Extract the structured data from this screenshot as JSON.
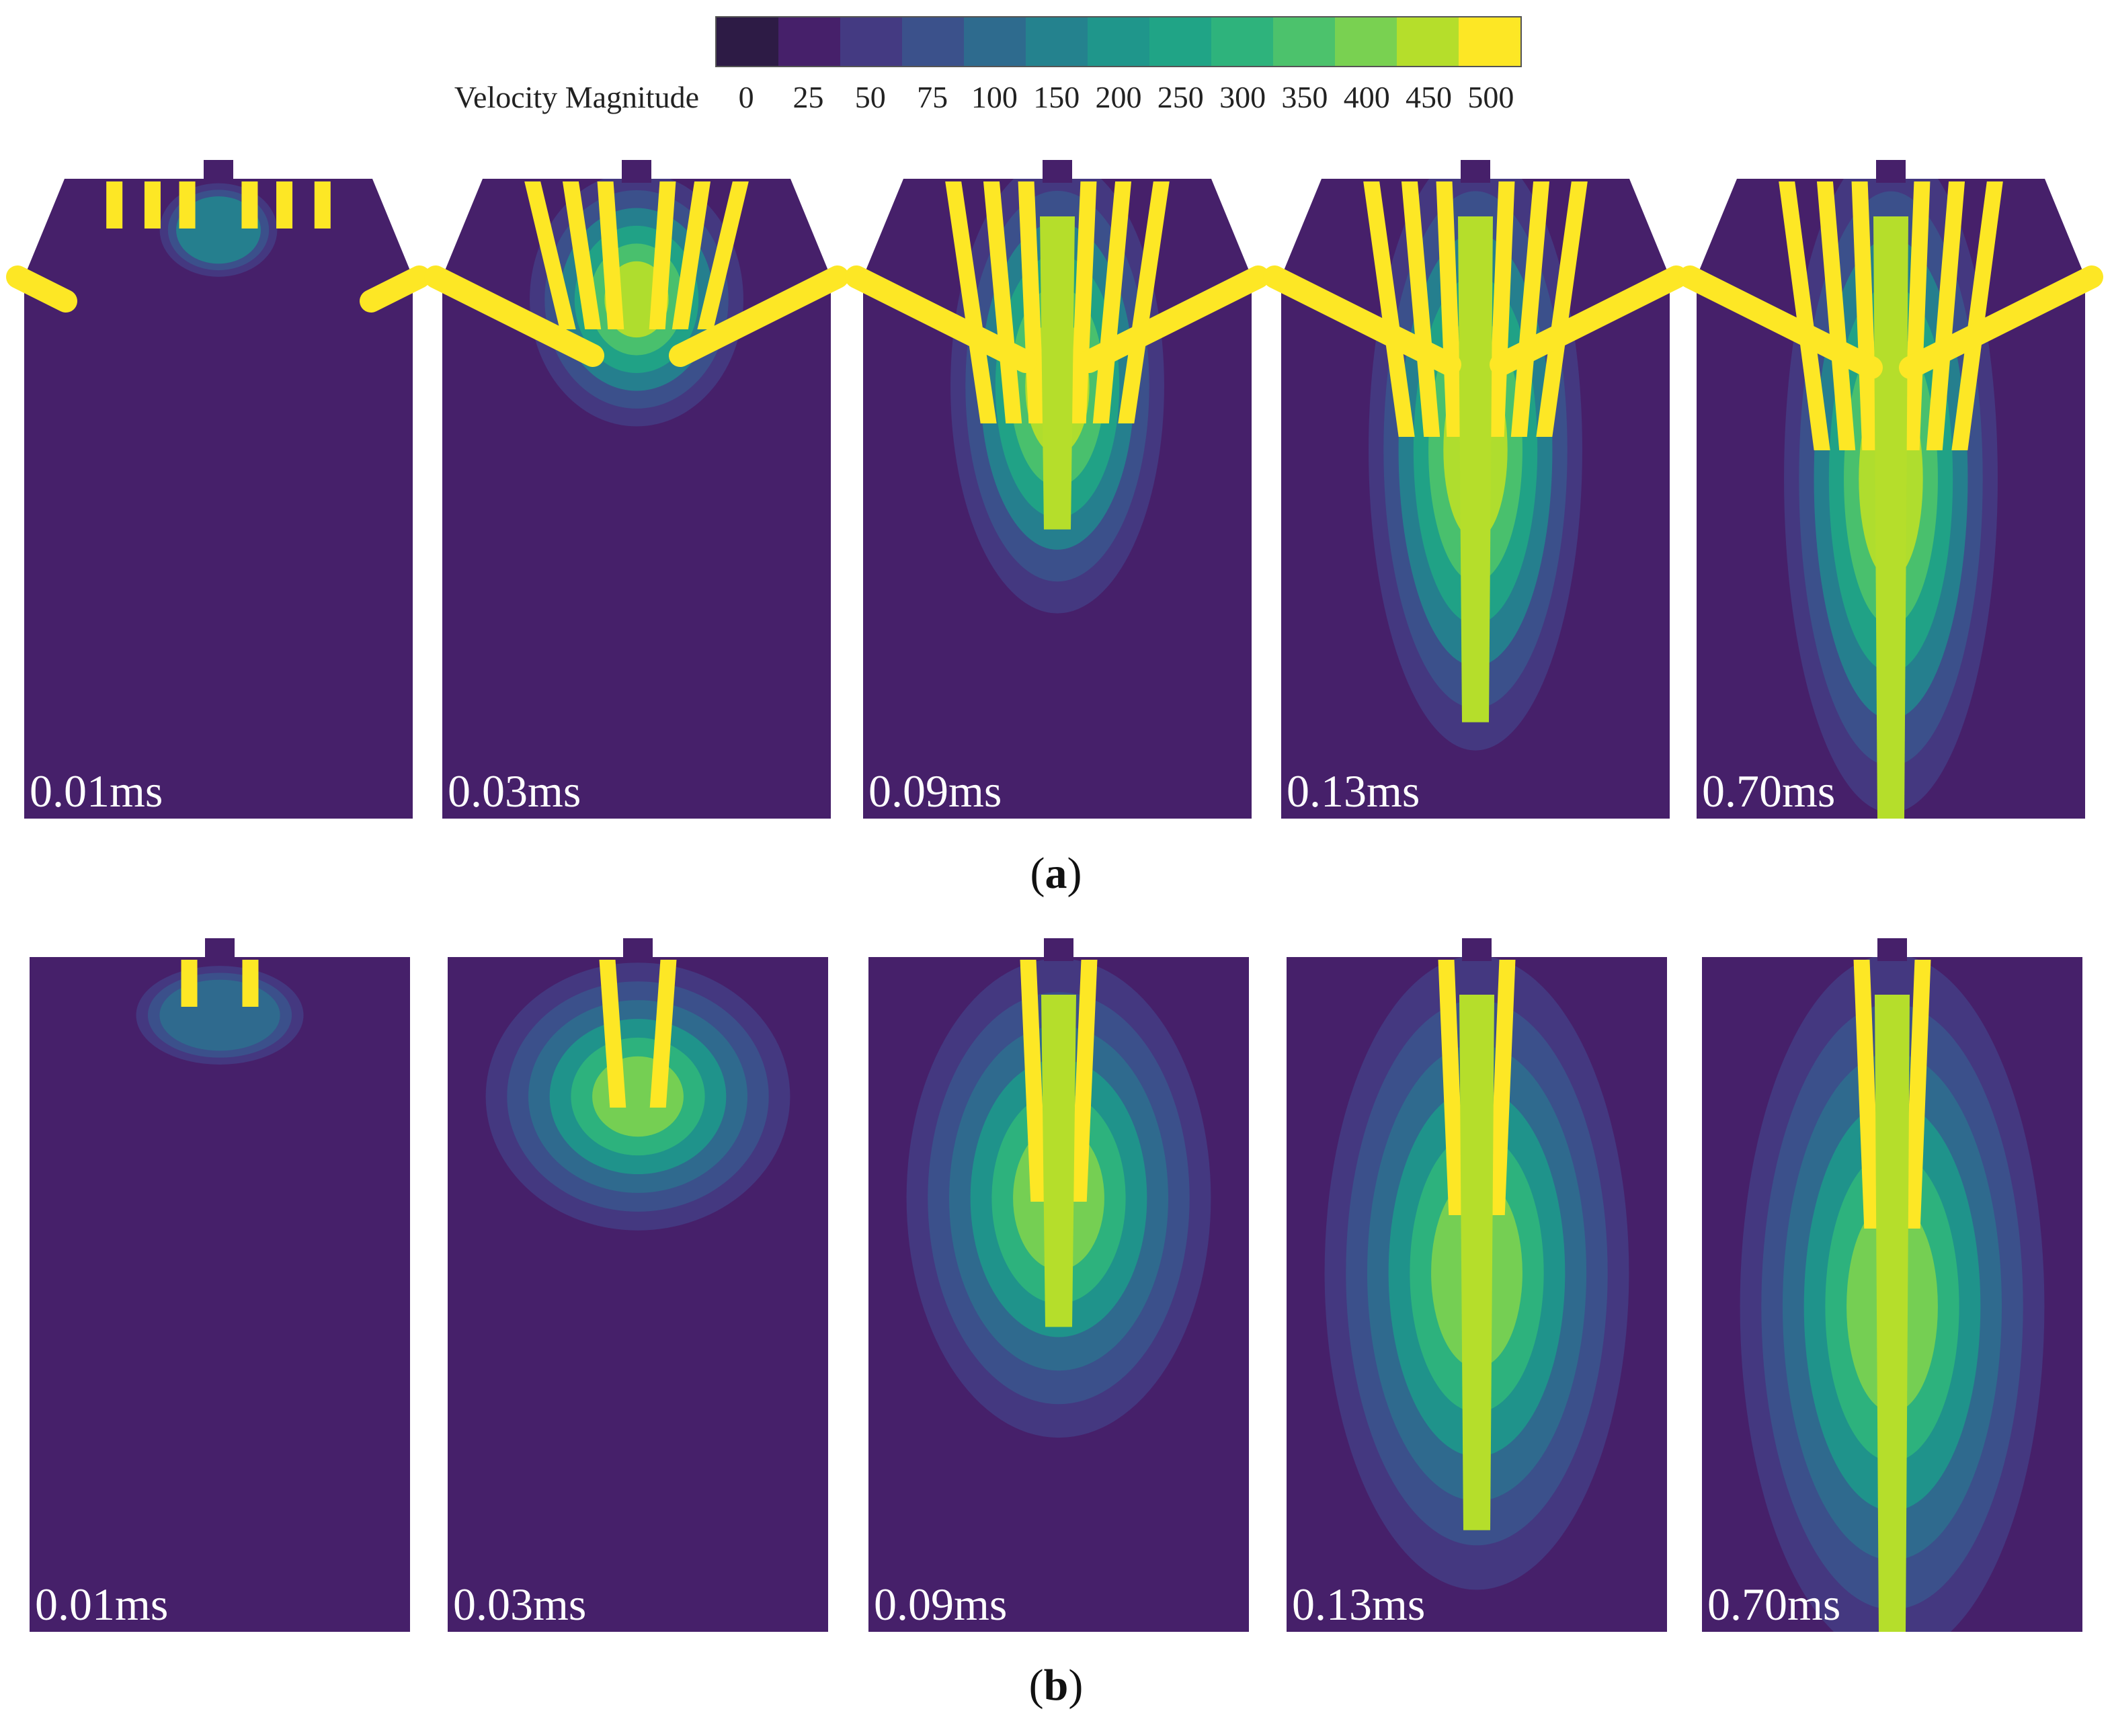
{
  "legend": {
    "title": "Velocity Magnitude",
    "ticks": [
      "0",
      "25",
      "50",
      "75",
      "100",
      "150",
      "200",
      "250",
      "300",
      "350",
      "400",
      "450",
      "500"
    ],
    "colors": [
      "#2d1b45",
      "#46206a",
      "#443a82",
      "#3b518b",
      "#2e6b8e",
      "#24828e",
      "#1f968b",
      "#20a486",
      "#2eb37c",
      "#4cc26c",
      "#79d151",
      "#b5de2b",
      "#fde725"
    ]
  },
  "row_a": {
    "caption_open": "(",
    "caption_letter": "a",
    "caption_close": ")",
    "panels": [
      {
        "time": "0.01ms",
        "stage": 0
      },
      {
        "time": "0.03ms",
        "stage": 1
      },
      {
        "time": "0.09ms",
        "stage": 2
      },
      {
        "time": "0.13ms",
        "stage": 3
      },
      {
        "time": "0.70ms",
        "stage": 4
      }
    ]
  },
  "row_b": {
    "caption_open": "(",
    "caption_letter": "b",
    "caption_close": ")",
    "panels": [
      {
        "time": "0.01ms",
        "stage": 0
      },
      {
        "time": "0.03ms",
        "stage": 1
      },
      {
        "time": "0.09ms",
        "stage": 2
      },
      {
        "time": "0.13ms",
        "stage": 3
      },
      {
        "time": "0.70ms",
        "stage": 4
      }
    ]
  }
}
